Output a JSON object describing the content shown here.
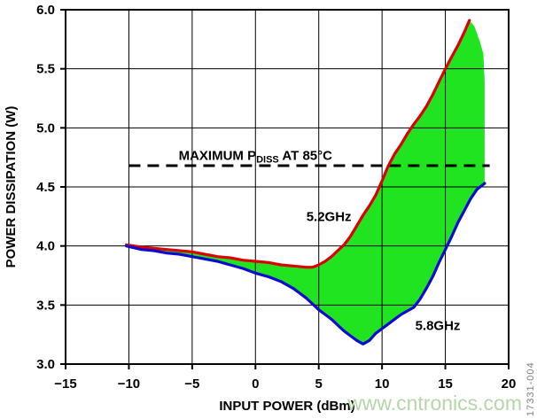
{
  "chart_data": {
    "type": "area",
    "title": "",
    "xlabel": "INPUT POWER (dBm)",
    "ylabel": "POWER DISSIPATION (W)",
    "xlim": [
      -15,
      20
    ],
    "ylim": [
      3.0,
      6.0
    ],
    "x_tick_values": [
      -15,
      -10,
      -5,
      0,
      5,
      10,
      15,
      20
    ],
    "x_tick_labels": [
      "−15",
      "−10",
      "−5",
      "0",
      "5",
      "10",
      "15",
      "20"
    ],
    "y_tick_values": [
      3.0,
      3.5,
      4.0,
      4.5,
      5.0,
      5.5,
      6.0
    ],
    "y_tick_labels": [
      "3.0",
      "3.5",
      "4.0",
      "4.5",
      "5.0",
      "5.5",
      "6.0"
    ],
    "grid": true,
    "legend_position": "inline-labels",
    "fill_between": {
      "color": "#21e421",
      "right_edge": [
        [
          17.3,
          5.86
        ],
        [
          17.7,
          5.74
        ],
        [
          18.0,
          5.63
        ],
        [
          18.1,
          5.4
        ],
        [
          18.1,
          4.53
        ]
      ]
    },
    "annotation_line": {
      "label_prefix": "MAXIMUM P",
      "label_subscript": "DISS",
      "label_suffix": " AT 85°C",
      "y": 4.68,
      "x_start": -10,
      "x_end": 18.5,
      "label_pos": [
        0,
        4.73
      ],
      "color": "#000000"
    },
    "series": [
      {
        "name": "5.2GHz",
        "color": "#dd0000",
        "label_pos": [
          5.8,
          4.21
        ],
        "points": [
          [
            -10.2,
            4.01
          ],
          [
            -9,
            3.99
          ],
          [
            -8,
            3.98
          ],
          [
            -7,
            3.97
          ],
          [
            -6,
            3.96
          ],
          [
            -5,
            3.95
          ],
          [
            -4,
            3.93
          ],
          [
            -3,
            3.91
          ],
          [
            -2,
            3.9
          ],
          [
            -1,
            3.88
          ],
          [
            0,
            3.87
          ],
          [
            1,
            3.86
          ],
          [
            2,
            3.84
          ],
          [
            3,
            3.83
          ],
          [
            4,
            3.82
          ],
          [
            4.5,
            3.82
          ],
          [
            5,
            3.84
          ],
          [
            5.5,
            3.87
          ],
          [
            6,
            3.91
          ],
          [
            6.5,
            3.96
          ],
          [
            7,
            4.01
          ],
          [
            7.5,
            4.08
          ],
          [
            8,
            4.17
          ],
          [
            8.5,
            4.26
          ],
          [
            9,
            4.34
          ],
          [
            9.5,
            4.43
          ],
          [
            10,
            4.55
          ],
          [
            10.5,
            4.68
          ],
          [
            11,
            4.78
          ],
          [
            11.5,
            4.86
          ],
          [
            12,
            4.95
          ],
          [
            12.5,
            5.03
          ],
          [
            13,
            5.1
          ],
          [
            13.5,
            5.18
          ],
          [
            14,
            5.28
          ],
          [
            14.5,
            5.39
          ],
          [
            15,
            5.5
          ],
          [
            15.5,
            5.6
          ],
          [
            16,
            5.7
          ],
          [
            16.5,
            5.81
          ],
          [
            16.9,
            5.91
          ]
        ]
      },
      {
        "name": "5.8GHz",
        "color": "#0a0ad2",
        "label_pos": [
          14.4,
          3.29
        ],
        "points": [
          [
            -10.2,
            4.0
          ],
          [
            -9,
            3.97
          ],
          [
            -8,
            3.96
          ],
          [
            -7,
            3.94
          ],
          [
            -6,
            3.93
          ],
          [
            -5,
            3.91
          ],
          [
            -4,
            3.89
          ],
          [
            -3,
            3.87
          ],
          [
            -2,
            3.84
          ],
          [
            -1,
            3.81
          ],
          [
            0,
            3.77
          ],
          [
            1,
            3.74
          ],
          [
            2,
            3.7
          ],
          [
            3,
            3.64
          ],
          [
            3.5,
            3.6
          ],
          [
            4,
            3.56
          ],
          [
            4.5,
            3.51
          ],
          [
            5,
            3.46
          ],
          [
            5.5,
            3.42
          ],
          [
            6,
            3.38
          ],
          [
            6.5,
            3.33
          ],
          [
            7,
            3.28
          ],
          [
            7.5,
            3.24
          ],
          [
            8,
            3.2
          ],
          [
            8.5,
            3.17
          ],
          [
            9,
            3.2
          ],
          [
            9.5,
            3.26
          ],
          [
            10,
            3.3
          ],
          [
            10.5,
            3.34
          ],
          [
            11,
            3.38
          ],
          [
            11.5,
            3.42
          ],
          [
            12,
            3.45
          ],
          [
            12.5,
            3.48
          ],
          [
            13,
            3.55
          ],
          [
            13.5,
            3.64
          ],
          [
            14,
            3.74
          ],
          [
            14.5,
            3.86
          ],
          [
            15,
            3.97
          ],
          [
            15.5,
            4.08
          ],
          [
            16,
            4.2
          ],
          [
            16.5,
            4.3
          ],
          [
            17,
            4.4
          ],
          [
            17.5,
            4.48
          ],
          [
            18.1,
            4.53
          ]
        ]
      }
    ]
  },
  "watermark": {
    "text": "www.cntronics.com",
    "color": "#b5d7ab"
  },
  "figure_id": {
    "text": "17331-004",
    "color": "#808080"
  }
}
